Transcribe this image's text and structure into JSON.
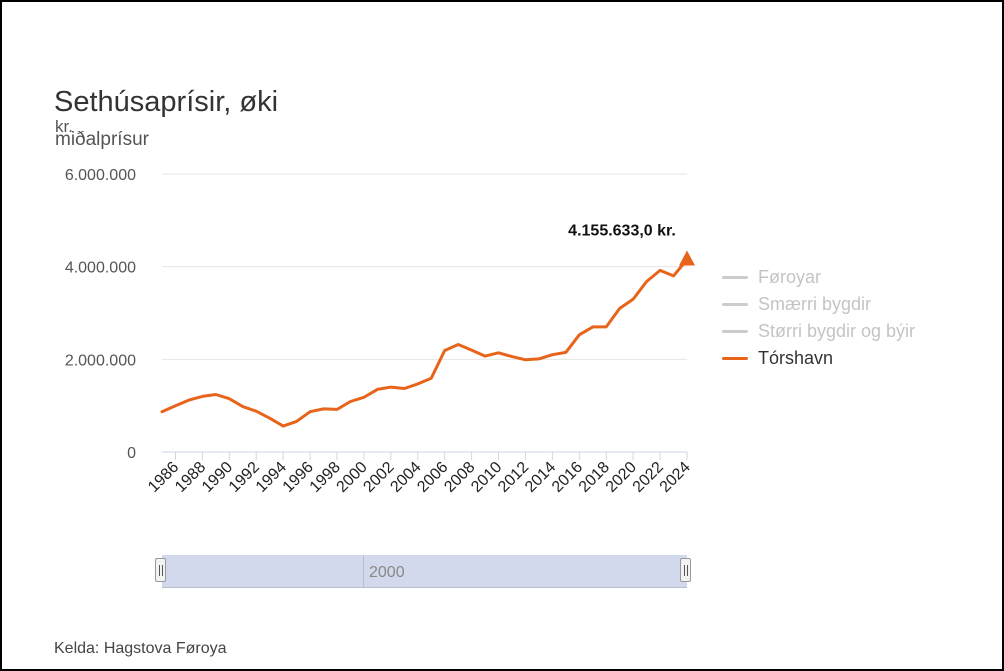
{
  "title": "Sethúsaprísir, øki",
  "unit": "kr.",
  "subtitle": "miðalprísur",
  "source": "Kelda: Hagstova Føroya",
  "navigator": {
    "label": "2000"
  },
  "legend": [
    {
      "name": "Føroyar",
      "active": false
    },
    {
      "name": "Smærri bygdir",
      "active": false
    },
    {
      "name": "Størri bygdir og býir",
      "active": false
    },
    {
      "name": "Tórshavn",
      "active": true
    }
  ],
  "colors": {
    "series": "#e8641b",
    "grid": "#e6e6e6",
    "axis": "#ccd6eb",
    "inactive": "#cccccc"
  },
  "chart_data": {
    "type": "line",
    "title": "Sethúsaprísir, øki",
    "subtitle": "miðalprísur",
    "ylabel": "kr.",
    "ylim": [
      0,
      6000000
    ],
    "yticks": [
      0,
      2000000,
      4000000,
      6000000
    ],
    "ytick_labels": [
      "0",
      "2.000.000",
      "4.000.000",
      "6.000.000"
    ],
    "xticks": [
      1986,
      1988,
      1990,
      1992,
      1994,
      1996,
      1998,
      2000,
      2002,
      2004,
      2006,
      2008,
      2010,
      2012,
      2014,
      2016,
      2018,
      2020,
      2022,
      2024
    ],
    "xtick_labels": [
      "1986",
      "1988",
      "1990",
      "1992",
      "1994",
      "1996",
      "1998",
      "2000",
      "2002",
      "2004",
      "2006",
      "2008",
      "2010",
      "2012",
      "2014",
      "2016",
      "2018",
      "2020",
      "2022",
      "2024"
    ],
    "grid": true,
    "legend_position": "right",
    "series": [
      {
        "name": "Tórshavn",
        "x": [
          1985,
          1986,
          1987,
          1988,
          1989,
          1990,
          1991,
          1992,
          1993,
          1994,
          1995,
          1996,
          1997,
          1998,
          1999,
          2000,
          2001,
          2002,
          2003,
          2004,
          2005,
          2006,
          2007,
          2008,
          2009,
          2010,
          2011,
          2012,
          2013,
          2014,
          2015,
          2016,
          2017,
          2018,
          2019,
          2020,
          2021,
          2022,
          2023,
          2024
        ],
        "values": [
          870000,
          1000000,
          1120000,
          1200000,
          1240000,
          1150000,
          980000,
          880000,
          730000,
          560000,
          660000,
          870000,
          930000,
          920000,
          1090000,
          1180000,
          1350000,
          1400000,
          1370000,
          1470000,
          1590000,
          2190000,
          2320000,
          2200000,
          2070000,
          2140000,
          2060000,
          1990000,
          2010000,
          2100000,
          2150000,
          2530000,
          2700000,
          2700000,
          3100000,
          3300000,
          3680000,
          3920000,
          3800000,
          4155633
        ]
      }
    ],
    "annotations": [
      {
        "x": 2024,
        "y": 4155633,
        "label": "4.155.633,0 kr."
      }
    ]
  }
}
